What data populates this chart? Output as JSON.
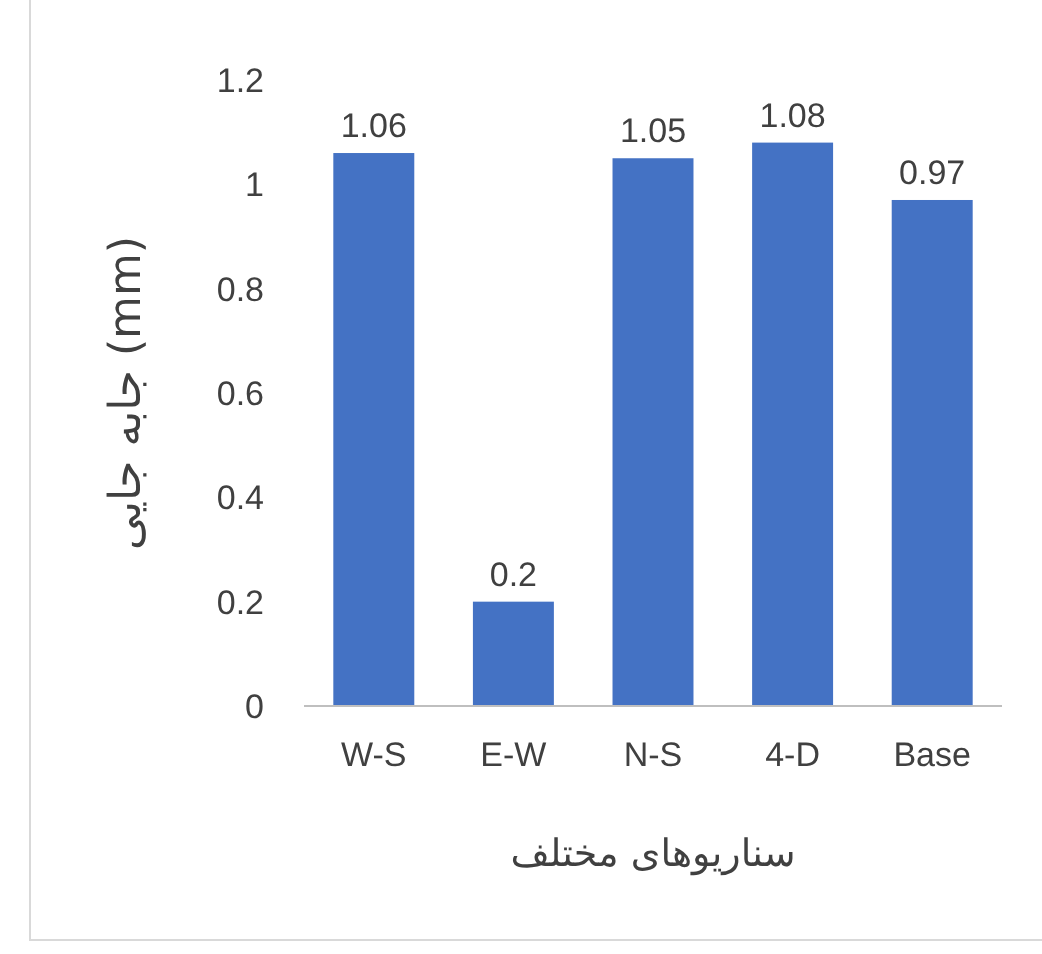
{
  "chart_data": {
    "type": "bar",
    "xlabel": "سناریوهای مختلف",
    "ylabel": "جابه جایی (mm)",
    "categories": [
      "W-S",
      "E-W",
      "N-S",
      "4-D",
      "Base"
    ],
    "values": [
      1.06,
      0.2,
      1.05,
      1.08,
      0.97
    ],
    "color": "#4472c4",
    "ylim": [
      0,
      1.2
    ],
    "yticks": [
      0,
      0.2,
      0.4,
      0.6,
      0.8,
      1,
      1.2
    ],
    "grid": false,
    "data_labels": true
  }
}
